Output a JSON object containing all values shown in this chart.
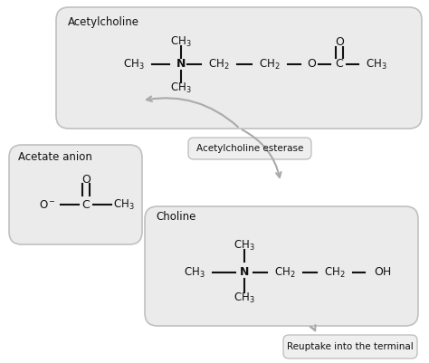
{
  "bg_color": "#ffffff",
  "box_face": "#ebebeb",
  "box_edge": "#c0c0c0",
  "line_color": "#111111",
  "arrow_color": "#aaaaaa",
  "ach_label": "Acetylcholine",
  "ace_label": "Acetate anion",
  "cho_label": "Choline",
  "esterase_label": "Acetylcholine esterase",
  "reuptake_label": "Reuptake into the terminal",
  "fig_width": 4.74,
  "fig_height": 4.01,
  "dpi": 100
}
